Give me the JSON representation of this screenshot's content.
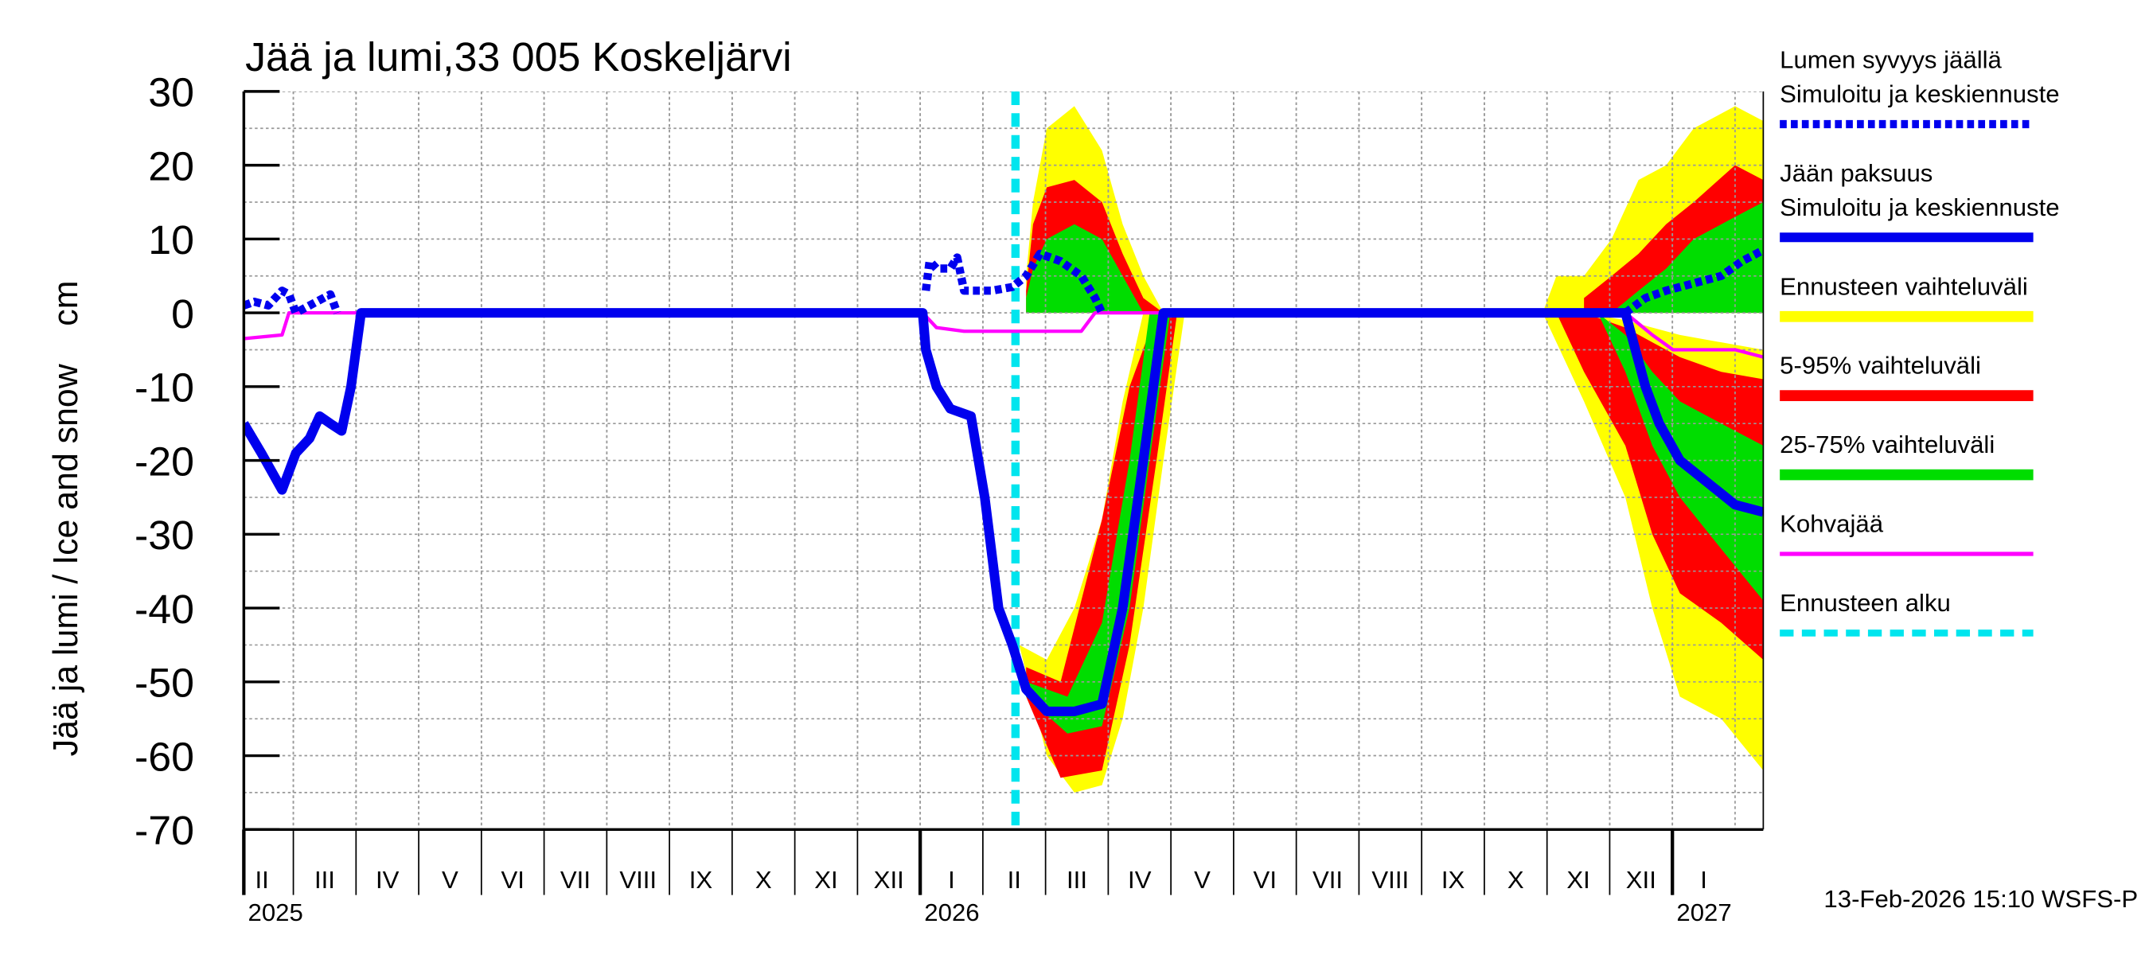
{
  "chart_data": {
    "type": "line",
    "title": "Jää ja lumi,33 005 Koskeljärvi",
    "y_label": "Jää ja lumi / Ice and snow    cm",
    "timestamp": "13-Feb-2026 15:10 WSFS-P",
    "xlim": [
      1.21,
      25.45
    ],
    "ylim": [
      -70,
      30
    ],
    "yticks": [
      -70,
      -60,
      -50,
      -40,
      -30,
      -20,
      -10,
      0,
      10,
      20,
      30
    ],
    "ygrid_minor": [
      -65,
      -55,
      -45,
      -35,
      -25,
      -15,
      -5,
      5,
      15,
      25
    ],
    "grid": true,
    "xticks": [
      {
        "value": 1.5,
        "label": "II"
      },
      {
        "value": 2.5,
        "label": "III"
      },
      {
        "value": 3.5,
        "label": "IV"
      },
      {
        "value": 4.5,
        "label": "V"
      },
      {
        "value": 5.5,
        "label": "VI"
      },
      {
        "value": 6.5,
        "label": "VII"
      },
      {
        "value": 7.5,
        "label": "VIII"
      },
      {
        "value": 8.5,
        "label": "IX"
      },
      {
        "value": 9.5,
        "label": "X"
      },
      {
        "value": 10.5,
        "label": "XI"
      },
      {
        "value": 11.5,
        "label": "XII"
      },
      {
        "value": 12.5,
        "label": "I"
      },
      {
        "value": 13.5,
        "label": "II"
      },
      {
        "value": 14.5,
        "label": "III"
      },
      {
        "value": 15.5,
        "label": "IV"
      },
      {
        "value": 16.5,
        "label": "V"
      },
      {
        "value": 17.5,
        "label": "VI"
      },
      {
        "value": 18.5,
        "label": "VII"
      },
      {
        "value": 19.5,
        "label": "VIII"
      },
      {
        "value": 20.5,
        "label": "IX"
      },
      {
        "value": 21.5,
        "label": "X"
      },
      {
        "value": 22.5,
        "label": "XI"
      },
      {
        "value": 23.5,
        "label": "XII"
      },
      {
        "value": 24.5,
        "label": "I"
      }
    ],
    "year_labels": [
      {
        "value": 1.21,
        "label": "2025"
      },
      {
        "value": 12,
        "label": "2026"
      },
      {
        "value": 24,
        "label": "2027"
      }
    ],
    "bands": [
      {
        "name": "Ennusteen vaihteluväli",
        "color": "#ffff00",
        "segments": [
          {
            "x": [
              13.69,
              13.8,
              14.02,
              14.46,
              14.9,
              15.23,
              15.56,
              15.88
            ],
            "low": [
              0,
              0,
              0,
              0,
              0,
              0,
              0,
              0
            ],
            "high": [
              5,
              15,
              25,
              28,
              22,
              12,
              5,
              0
            ]
          },
          {
            "x": [
              13.58,
              14.02,
              14.46,
              14.9,
              15.23,
              15.56,
              15.88,
              16.22
            ],
            "low": [
              -45,
              -60,
              -65,
              -64,
              -55,
              -40,
              -20,
              0
            ],
            "high": [
              -45,
              -47,
              -40,
              -28,
              -12,
              0,
              0,
              0
            ]
          },
          {
            "x": [
              21.93,
              22.15,
              22.59,
              23.03,
              23.46,
              23.9,
              24.34,
              25.0,
              25.45
            ],
            "low": [
              0,
              0,
              0,
              0,
              0,
              0,
              0,
              0,
              0
            ],
            "high": [
              0,
              5,
              5,
              10,
              18,
              20,
              25,
              28,
              26
            ]
          },
          {
            "x": [
              21.93,
              22.59,
              23.25,
              23.68,
              24.12,
              24.78,
              25.45
            ],
            "low": [
              0,
              -12,
              -25,
              -40,
              -52,
              -55,
              -62
            ],
            "high": [
              0,
              0,
              -1,
              -2,
              -3,
              -4,
              -5
            ]
          }
        ]
      },
      {
        "name": "5-95% vaihteluväli",
        "color": "#ff0000",
        "segments": [
          {
            "x": [
              13.69,
              13.8,
              14.02,
              14.46,
              14.9,
              15.23,
              15.56,
              15.88
            ],
            "low": [
              0,
              0,
              0,
              0,
              0,
              0,
              0,
              0
            ],
            "high": [
              3,
              12,
              17,
              18,
              15,
              8,
              2,
              0
            ]
          },
          {
            "x": [
              13.69,
              14.24,
              14.9,
              15.34,
              15.77,
              16.1
            ],
            "low": [
              -52,
              -63,
              -62,
              -45,
              -20,
              0
            ],
            "high": [
              -48,
              -50,
              -28,
              -10,
              0,
              0
            ]
          },
          {
            "x": [
              22.59,
              23.03,
              23.46,
              23.9,
              24.34,
              25.0,
              25.45
            ],
            "low": [
              0,
              0,
              0,
              0,
              0,
              0,
              0
            ],
            "high": [
              2,
              5,
              8,
              12,
              15,
              20,
              18
            ]
          },
          {
            "x": [
              22.15,
              22.59,
              23.25,
              23.68,
              24.12,
              24.78,
              25.45
            ],
            "low": [
              0,
              -8,
              -18,
              -30,
              -38,
              -42,
              -47
            ],
            "high": [
              0,
              0,
              -2,
              -4,
              -6,
              -8,
              -9
            ]
          }
        ]
      },
      {
        "name": "25-75% vaihteluväli",
        "color": "#00dd00",
        "segments": [
          {
            "x": [
              13.69,
              13.8,
              14.02,
              14.46,
              14.9,
              15.23,
              15.56,
              15.88
            ],
            "low": [
              0,
              0,
              0,
              0,
              0,
              0,
              0,
              0
            ],
            "high": [
              2,
              6,
              10,
              12,
              10,
              5,
              0,
              0
            ]
          },
          {
            "x": [
              13.69,
              14.35,
              14.9,
              15.34,
              15.66,
              15.99
            ],
            "low": [
              -52,
              -57,
              -56,
              -40,
              -20,
              0
            ],
            "high": [
              -50,
              -52,
              -42,
              -20,
              0,
              0
            ]
          },
          {
            "x": [
              23.03,
              23.46,
              23.9,
              24.34,
              25.0,
              25.45
            ],
            "low": [
              0,
              0,
              0,
              0,
              0,
              0
            ],
            "high": [
              0,
              3,
              6,
              10,
              13,
              15
            ]
          },
          {
            "x": [
              22.81,
              23.25,
              23.68,
              24.12,
              24.78,
              25.45
            ],
            "low": [
              0,
              -8,
              -18,
              -25,
              -32,
              -39
            ],
            "high": [
              0,
              -3,
              -8,
              -12,
              -15,
              -18
            ]
          }
        ]
      }
    ],
    "series": [
      {
        "name": "Kohvajää",
        "color": "#ff00ff",
        "width": 2.5,
        "x": [
          1.21,
          1.82,
          1.93,
          12.04,
          12.26,
          12.7,
          14.57,
          14.79,
          23.25,
          23.68,
          24.01,
          25.0,
          25.45
        ],
        "values": [
          -3.5,
          -3,
          0,
          0,
          -2,
          -2.5,
          -2.5,
          0,
          0,
          -3,
          -5,
          -5,
          -6
        ]
      },
      {
        "name": "Jään paksuus",
        "subname": "Simuloitu ja keskiennuste",
        "color": "#0000ee",
        "width": 7,
        "x": [
          1.21,
          1.49,
          1.82,
          2.04,
          2.26,
          2.42,
          2.59,
          2.77,
          2.92,
          3.08,
          12.04,
          12.09,
          12.26,
          12.48,
          12.81,
          13.03,
          13.25,
          13.47,
          13.69,
          14.02,
          14.46,
          14.9,
          15.23,
          15.56,
          15.88,
          23.25,
          23.57,
          23.79,
          24.12,
          24.56,
          25.0,
          25.45
        ],
        "values": [
          -15,
          -19,
          -24,
          -19,
          -17,
          -14,
          -15,
          -16,
          -10,
          0,
          0,
          -5,
          -10,
          -13,
          -14,
          -25,
          -40,
          -45,
          -51,
          -54,
          -54,
          -53,
          -40,
          -20,
          0,
          0,
          -10,
          -15,
          -20,
          -23,
          -26,
          -27
        ]
      },
      {
        "name": "Lumen syvyys jäällä",
        "subname": "Simuloitu ja keskiennuste",
        "color": "#0000ee",
        "width": 6,
        "dashed": true,
        "x": [
          1.21,
          1.38,
          1.6,
          1.82,
          1.93,
          2.04,
          2.26,
          2.59,
          2.7,
          7,
          12.09,
          12.15,
          12.26,
          12.48,
          12.59,
          12.7,
          13.14,
          13.47,
          13.69,
          13.91,
          14.24,
          14.57,
          14.79,
          14.9,
          18,
          23.25,
          23.57,
          23.9,
          24.34,
          24.78,
          25.11,
          25.45
        ],
        "values": [
          1,
          1.5,
          1,
          3,
          2.5,
          0,
          1,
          2.5,
          0,
          null,
          3,
          7,
          6,
          6,
          7.5,
          3,
          3,
          3.5,
          5,
          8,
          7,
          5,
          2,
          0,
          null,
          0,
          2,
          3,
          4,
          5,
          7,
          8.5
        ]
      }
    ],
    "forecast_line": {
      "name": "Ennusteen alku",
      "x": 13.52,
      "color": "#00e5ee"
    },
    "legend_order": [
      "series.2",
      "series.1",
      "bands.0",
      "bands.1",
      "bands.2",
      "series.0",
      "forecast_line"
    ]
  }
}
